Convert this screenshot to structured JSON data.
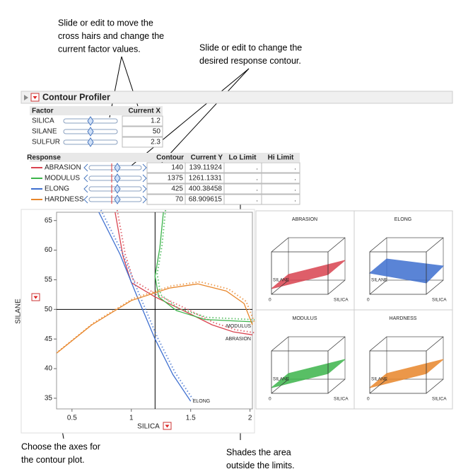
{
  "annotations": [
    {
      "lines": [
        "Slide or edit to move the",
        "cross hairs and change the",
        "current factor values."
      ]
    },
    {
      "lines": [
        "Slide or edit to change the",
        "desired response contour."
      ]
    },
    {
      "lines": [
        "Choose the axes for",
        "the contour plot."
      ]
    },
    {
      "lines": [
        "Shades the area",
        "outside the limits."
      ]
    }
  ],
  "panel": {
    "title": "Contour Profiler"
  },
  "factor_table": {
    "headers": {
      "factor": "Factor",
      "current_x": "Current X"
    },
    "rows": [
      {
        "name": "SILICA",
        "value": 1.2
      },
      {
        "name": "SILANE",
        "value": 50
      },
      {
        "name": "SULFUR",
        "value": 2.3
      }
    ]
  },
  "response_table": {
    "headers": {
      "response": "Response",
      "contour": "Contour",
      "current_y": "Current Y",
      "lo_limit": "Lo Limit",
      "hi_limit": "Hi Limit"
    },
    "rows": [
      {
        "name": "ABRASION",
        "contour": 140,
        "current_y": 139.11924,
        "lo_limit": ".",
        "hi_limit": "."
      },
      {
        "name": "MODULUS",
        "contour": 1375,
        "current_y": 1261.1331,
        "lo_limit": ".",
        "hi_limit": "."
      },
      {
        "name": "ELONG",
        "contour": 425,
        "current_y": 400.38458,
        "lo_limit": ".",
        "hi_limit": "."
      },
      {
        "name": "HARDNESS",
        "contour": 70,
        "current_y": 68.909615,
        "lo_limit": ".",
        "hi_limit": "."
      }
    ]
  },
  "chart_data": {
    "type": "contour",
    "xlabel": "SILICA",
    "ylabel": "SILANE",
    "xlim": [
      0.37,
      2.02
    ],
    "ylim": [
      33.2,
      66.4
    ],
    "xticks": [
      0.5,
      1,
      1.5,
      2
    ],
    "yticks": [
      35,
      40,
      45,
      50,
      55,
      60,
      65
    ],
    "series": [
      {
        "name": "ABRASION",
        "color": "#d9434f",
        "labeled": true,
        "x": [
          0.863,
          0.93,
          1.0,
          1.2,
          1.44,
          1.68,
          1.86,
          2.02
        ],
        "y": [
          66.4,
          59,
          54.5,
          52.1,
          49.8,
          47.4,
          46.2,
          45.7
        ]
      },
      {
        "name": "MODULUS",
        "color": "#3cb44b",
        "labeled": true,
        "x": [
          1.27,
          1.24,
          1.2,
          1.23,
          1.38,
          1.62,
          2.02
        ],
        "y": [
          66.4,
          60.4,
          55.6,
          52.1,
          49.8,
          48.3,
          47.9
        ]
      },
      {
        "name": "ELONG",
        "color": "#3e6fd0",
        "labeled": true,
        "x": [
          0.726,
          0.905,
          1.05,
          1.2,
          1.35,
          1.5
        ],
        "y": [
          66.4,
          59.3,
          52.1,
          45,
          39,
          34.5
        ]
      },
      {
        "name": "HARDNESS",
        "color": "#e8862a",
        "labeled": false,
        "x": [
          0.37,
          0.667,
          1.0,
          1.32,
          1.56,
          1.8,
          1.95,
          2.02
        ],
        "y": [
          42.6,
          47.4,
          51.5,
          53.6,
          54.3,
          53.1,
          51,
          47.4
        ]
      }
    ]
  },
  "surface_plots": [
    {
      "title": "ABRASION",
      "x_label": "SILICA",
      "y_label": "SILANE",
      "z_tick": "0"
    },
    {
      "title": "ELONG",
      "x_label": "SILICA",
      "y_label": "SILANE",
      "z_tick": "0"
    },
    {
      "title": "MODULUS",
      "x_label": "SILICA",
      "y_label": "SILANE",
      "z_tick": "0"
    },
    {
      "title": "HARDNESS",
      "x_label": "SILICA",
      "y_label": "SILANE",
      "z_tick": "0"
    }
  ]
}
